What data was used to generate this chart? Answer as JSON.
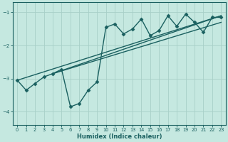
{
  "xlabel": "Humidex (Indice chaleur)",
  "xlim": [
    -0.5,
    23.5
  ],
  "ylim": [
    -4.4,
    -0.7
  ],
  "yticks": [
    -4,
    -3,
    -2,
    -1
  ],
  "xticks": [
    0,
    1,
    2,
    3,
    4,
    5,
    6,
    7,
    8,
    9,
    10,
    11,
    12,
    13,
    14,
    15,
    16,
    17,
    18,
    19,
    20,
    21,
    22,
    23
  ],
  "bg_color": "#c5e8e0",
  "grid_color": "#a8cfc8",
  "line_color": "#1a6060",
  "line_width": 1.0,
  "marker_size": 2.5,
  "data_x": [
    0,
    1,
    2,
    3,
    4,
    5,
    6,
    7,
    8,
    9,
    10,
    11,
    12,
    13,
    14,
    15,
    16,
    17,
    18,
    19,
    20,
    21,
    22,
    23
  ],
  "data_y": [
    -3.05,
    -3.35,
    -3.15,
    -2.95,
    -2.85,
    -2.72,
    -3.85,
    -3.75,
    -3.35,
    -3.1,
    -1.45,
    -1.35,
    -1.65,
    -1.5,
    -1.2,
    -1.7,
    -1.55,
    -1.1,
    -1.42,
    -1.05,
    -1.3,
    -1.6,
    -1.15,
    -1.15
  ],
  "trend1_x": [
    0,
    23
  ],
  "trend1_y": [
    -3.05,
    -1.1
  ],
  "trend2_x": [
    4,
    23
  ],
  "trend2_y": [
    -2.85,
    -1.1
  ],
  "trend3_x": [
    4,
    23
  ],
  "trend3_y": [
    -2.85,
    -1.3
  ]
}
